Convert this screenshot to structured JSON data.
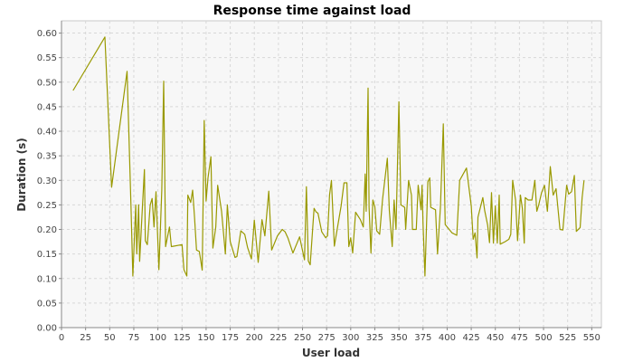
{
  "chart_data": {
    "type": "line",
    "title": "Response time against load",
    "xlabel": "User load",
    "ylabel": "Duration (s)",
    "xlim": [
      0,
      560
    ],
    "ylim": [
      0,
      0.625
    ],
    "x_ticks": [
      0,
      25,
      50,
      75,
      100,
      125,
      150,
      175,
      200,
      225,
      250,
      275,
      300,
      325,
      350,
      375,
      400,
      425,
      450,
      475,
      500,
      525,
      550
    ],
    "y_ticks": [
      0.0,
      0.05,
      0.1,
      0.15,
      0.2,
      0.25,
      0.3,
      0.35,
      0.4,
      0.45,
      0.5,
      0.55,
      0.6
    ],
    "y_tick_labels": [
      "0.00",
      "0.05",
      "0.10",
      "0.15",
      "0.20",
      "0.25",
      "0.30",
      "0.35",
      "0.40",
      "0.45",
      "0.50",
      "0.55",
      "0.60"
    ],
    "grid": true,
    "line_color": "#999900",
    "series": [
      {
        "points": [
          [
            12,
            0.483
          ],
          [
            45,
            0.592
          ],
          [
            52,
            0.286
          ],
          [
            68,
            0.522
          ],
          [
            72,
            0.25
          ],
          [
            74,
            0.105
          ],
          [
            77,
            0.25
          ],
          [
            78,
            0.15
          ],
          [
            80,
            0.25
          ],
          [
            81,
            0.135
          ],
          [
            84,
            0.25
          ],
          [
            86,
            0.322
          ],
          [
            87,
            0.177
          ],
          [
            89,
            0.169
          ],
          [
            92,
            0.25
          ],
          [
            94,
            0.263
          ],
          [
            96,
            0.205
          ],
          [
            98,
            0.277
          ],
          [
            101,
            0.118
          ],
          [
            104,
            0.28
          ],
          [
            106,
            0.502
          ],
          [
            108,
            0.165
          ],
          [
            112,
            0.205
          ],
          [
            114,
            0.165
          ],
          [
            125,
            0.169
          ],
          [
            127,
            0.118
          ],
          [
            130,
            0.105
          ],
          [
            131,
            0.27
          ],
          [
            134,
            0.255
          ],
          [
            136,
            0.28
          ],
          [
            138,
            0.225
          ],
          [
            140,
            0.158
          ],
          [
            143,
            0.155
          ],
          [
            146,
            0.117
          ],
          [
            148,
            0.422
          ],
          [
            150,
            0.258
          ],
          [
            152,
            0.305
          ],
          [
            155,
            0.348
          ],
          [
            157,
            0.162
          ],
          [
            160,
            0.205
          ],
          [
            162,
            0.29
          ],
          [
            166,
            0.237
          ],
          [
            170,
            0.15
          ],
          [
            172,
            0.25
          ],
          [
            175,
            0.175
          ],
          [
            180,
            0.143
          ],
          [
            182,
            0.145
          ],
          [
            186,
            0.197
          ],
          [
            190,
            0.19
          ],
          [
            193,
            0.163
          ],
          [
            197,
            0.14
          ],
          [
            200,
            0.219
          ],
          [
            204,
            0.133
          ],
          [
            208,
            0.22
          ],
          [
            211,
            0.187
          ],
          [
            215,
            0.278
          ],
          [
            218,
            0.158
          ],
          [
            224,
            0.187
          ],
          [
            229,
            0.2
          ],
          [
            232,
            0.195
          ],
          [
            235,
            0.182
          ],
          [
            240,
            0.152
          ],
          [
            247,
            0.185
          ],
          [
            252,
            0.138
          ],
          [
            254,
            0.287
          ],
          [
            256,
            0.136
          ],
          [
            258,
            0.128
          ],
          [
            262,
            0.243
          ],
          [
            264,
            0.236
          ],
          [
            266,
            0.233
          ],
          [
            270,
            0.195
          ],
          [
            274,
            0.183
          ],
          [
            276,
            0.187
          ],
          [
            278,
            0.27
          ],
          [
            280,
            0.3
          ],
          [
            283,
            0.166
          ],
          [
            287,
            0.213
          ],
          [
            290,
            0.248
          ],
          [
            293,
            0.295
          ],
          [
            296,
            0.295
          ],
          [
            298,
            0.165
          ],
          [
            300,
            0.183
          ],
          [
            302,
            0.152
          ],
          [
            305,
            0.235
          ],
          [
            310,
            0.22
          ],
          [
            313,
            0.205
          ],
          [
            315,
            0.313
          ],
          [
            316,
            0.237
          ],
          [
            318,
            0.488
          ],
          [
            319,
            0.246
          ],
          [
            321,
            0.152
          ],
          [
            323,
            0.26
          ],
          [
            325,
            0.246
          ],
          [
            327,
            0.197
          ],
          [
            330,
            0.19
          ],
          [
            333,
            0.261
          ],
          [
            338,
            0.345
          ],
          [
            340,
            0.239
          ],
          [
            343,
            0.165
          ],
          [
            345,
            0.26
          ],
          [
            347,
            0.2
          ],
          [
            350,
            0.46
          ],
          [
            352,
            0.25
          ],
          [
            356,
            0.245
          ],
          [
            357,
            0.2
          ],
          [
            360,
            0.3
          ],
          [
            363,
            0.27
          ],
          [
            364,
            0.2
          ],
          [
            368,
            0.2
          ],
          [
            370,
            0.29
          ],
          [
            373,
            0.24
          ],
          [
            374,
            0.29
          ],
          [
            375,
            0.21
          ],
          [
            377,
            0.105
          ],
          [
            380,
            0.297
          ],
          [
            382,
            0.305
          ],
          [
            383,
            0.245
          ],
          [
            388,
            0.24
          ],
          [
            390,
            0.15
          ],
          [
            393,
            0.245
          ],
          [
            396,
            0.415
          ],
          [
            398,
            0.21
          ],
          [
            405,
            0.193
          ],
          [
            410,
            0.188
          ],
          [
            413,
            0.3
          ],
          [
            420,
            0.325
          ],
          [
            425,
            0.248
          ],
          [
            427,
            0.18
          ],
          [
            429,
            0.193
          ],
          [
            431,
            0.142
          ],
          [
            432,
            0.225
          ],
          [
            437,
            0.265
          ],
          [
            439,
            0.238
          ],
          [
            442,
            0.209
          ],
          [
            444,
            0.173
          ],
          [
            446,
            0.275
          ],
          [
            448,
            0.172
          ],
          [
            450,
            0.248
          ],
          [
            452,
            0.172
          ],
          [
            454,
            0.27
          ],
          [
            455,
            0.17
          ],
          [
            460,
            0.175
          ],
          [
            464,
            0.18
          ],
          [
            466,
            0.19
          ],
          [
            468,
            0.3
          ],
          [
            471,
            0.26
          ],
          [
            473,
            0.177
          ],
          [
            476,
            0.27
          ],
          [
            478,
            0.243
          ],
          [
            480,
            0.172
          ],
          [
            481,
            0.265
          ],
          [
            484,
            0.26
          ],
          [
            488,
            0.26
          ],
          [
            491,
            0.3
          ],
          [
            493,
            0.237
          ],
          [
            495,
            0.25
          ],
          [
            498,
            0.275
          ],
          [
            501,
            0.29
          ],
          [
            504,
            0.237
          ],
          [
            507,
            0.328
          ],
          [
            510,
            0.27
          ],
          [
            513,
            0.283
          ],
          [
            517,
            0.2
          ],
          [
            520,
            0.199
          ],
          [
            524,
            0.29
          ],
          [
            526,
            0.272
          ],
          [
            529,
            0.277
          ],
          [
            532,
            0.31
          ],
          [
            534,
            0.196
          ],
          [
            538,
            0.204
          ],
          [
            540,
            0.265
          ],
          [
            542,
            0.3
          ]
        ]
      }
    ]
  }
}
